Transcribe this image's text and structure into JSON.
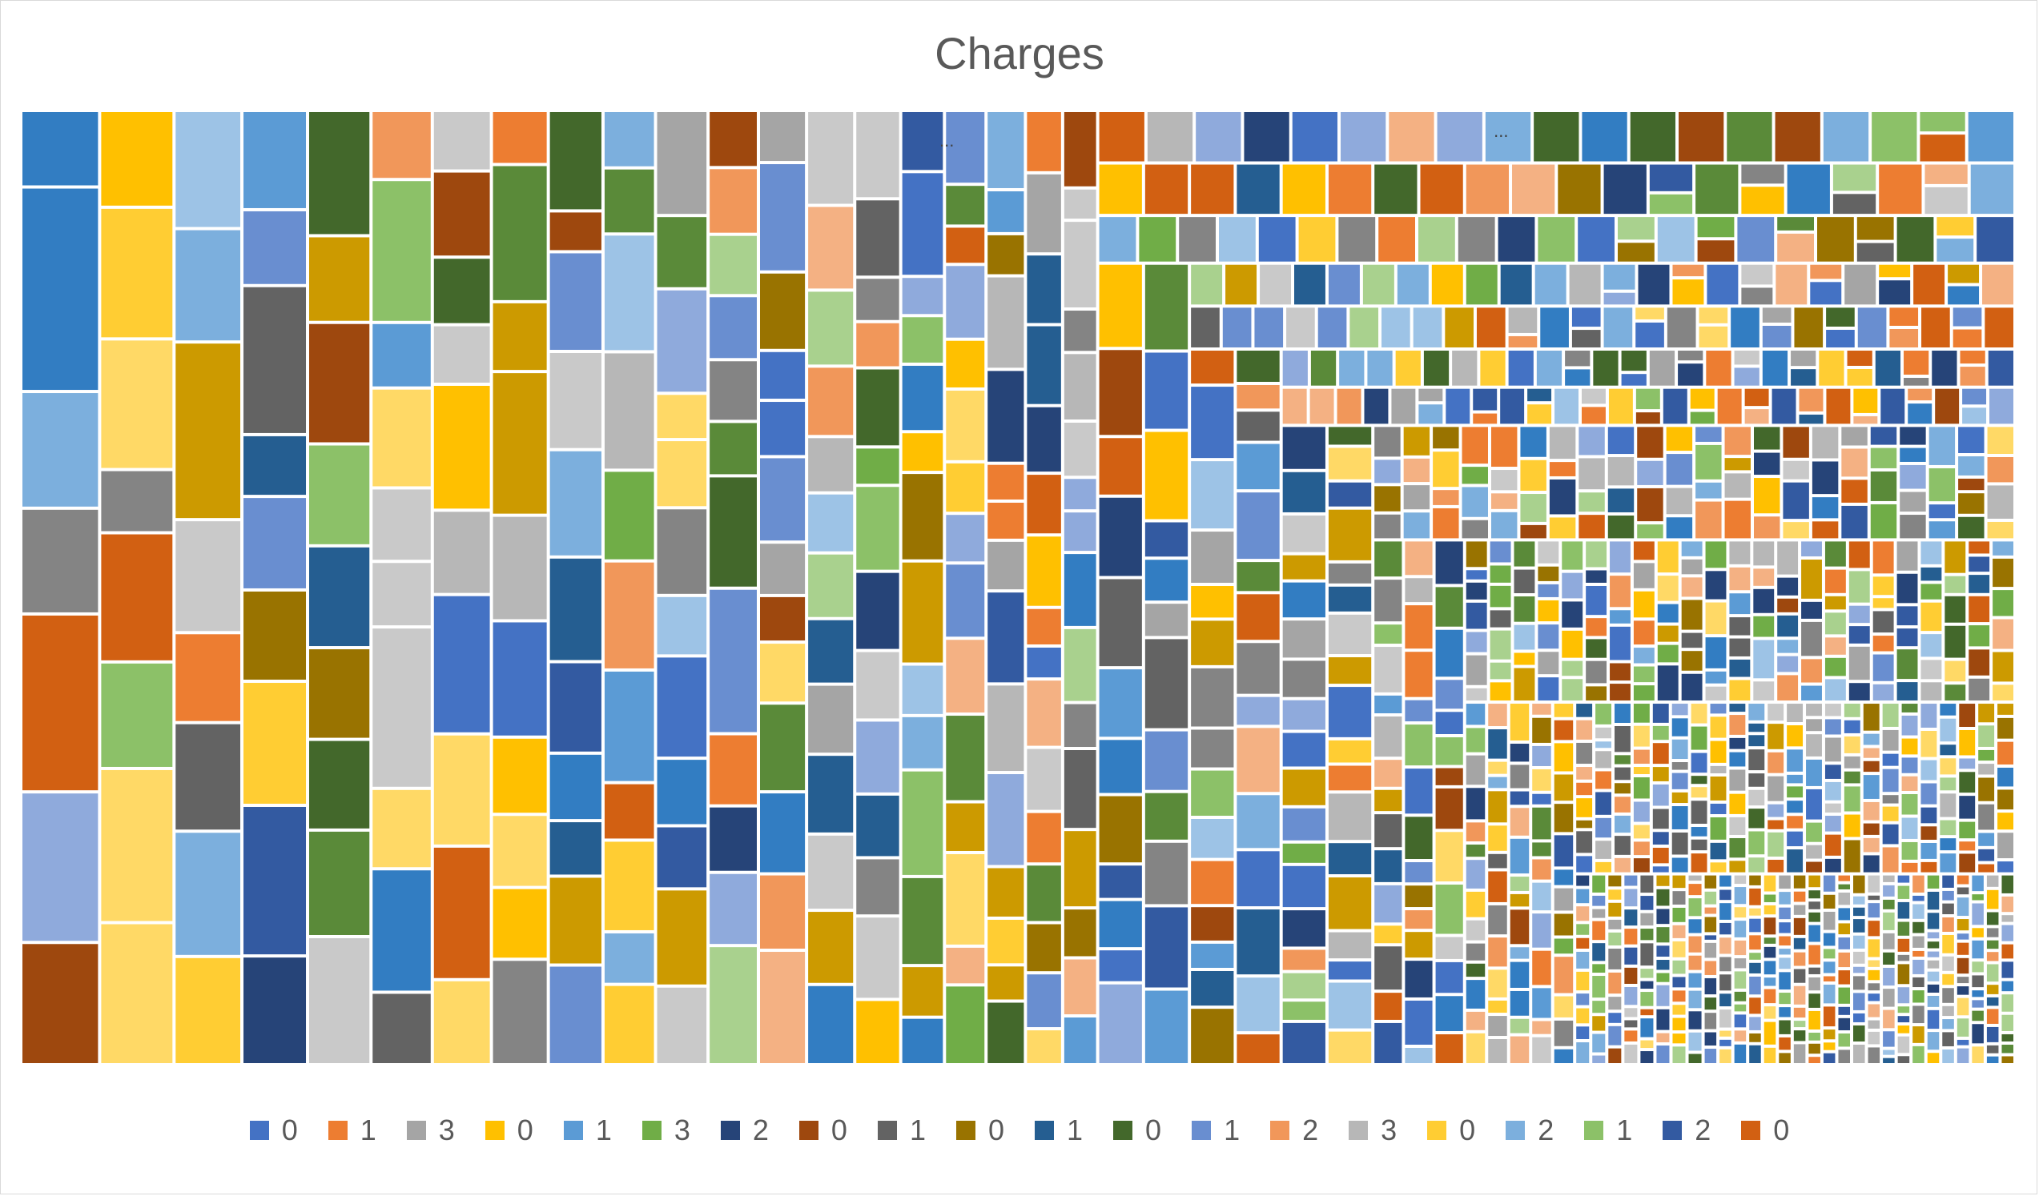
{
  "chart_data": {
    "type": "treemap",
    "title": "Charges",
    "palette": [
      "#4472C4",
      "#ED7D31",
      "#A5A5A5",
      "#FFC000",
      "#5B9BD5",
      "#70AD47",
      "#264478",
      "#9E480E",
      "#636363",
      "#997300",
      "#255E91",
      "#43682B",
      "#698ED0",
      "#F1975A",
      "#B7B7B7",
      "#FFCD33",
      "#7CAFDD",
      "#8CC168",
      "#335AA1",
      "#D26012",
      "#848484",
      "#CC9A00",
      "#327DC2",
      "#5A8A39",
      "#8FAADC",
      "#F4B183",
      "#C9C9C9",
      "#FFD966",
      "#9DC3E6",
      "#A9D18E"
    ],
    "legend": [
      {
        "label": "0",
        "color": "#4472C4"
      },
      {
        "label": "1",
        "color": "#ED7D31"
      },
      {
        "label": "3",
        "color": "#A5A5A5"
      },
      {
        "label": "0",
        "color": "#FFC000"
      },
      {
        "label": "1",
        "color": "#5B9BD5"
      },
      {
        "label": "3",
        "color": "#70AD47"
      },
      {
        "label": "2",
        "color": "#264478"
      },
      {
        "label": "0",
        "color": "#9E480E"
      },
      {
        "label": "1",
        "color": "#636363"
      },
      {
        "label": "0",
        "color": "#997300"
      },
      {
        "label": "1",
        "color": "#255E91"
      },
      {
        "label": "0",
        "color": "#43682B"
      },
      {
        "label": "1",
        "color": "#698ED0"
      },
      {
        "label": "2",
        "color": "#F1975A"
      },
      {
        "label": "3",
        "color": "#B7B7B7"
      },
      {
        "label": "0",
        "color": "#FFCD33"
      },
      {
        "label": "2",
        "color": "#7CAFDD"
      },
      {
        "label": "1",
        "color": "#8CC168"
      },
      {
        "label": "2",
        "color": "#335AA1"
      },
      {
        "label": "0",
        "color": "#D26012"
      }
    ],
    "groups": [
      {
        "value": 36,
        "leaves": 7
      },
      {
        "value": 34,
        "leaves": 8
      },
      {
        "value": 31,
        "leaves": 8
      },
      {
        "value": 30,
        "leaves": 9
      },
      {
        "value": 29,
        "leaves": 9
      },
      {
        "value": 28,
        "leaves": 10
      },
      {
        "value": 27,
        "leaves": 10
      },
      {
        "value": 26,
        "leaves": 10
      },
      {
        "value": 25,
        "leaves": 11
      },
      {
        "value": 24,
        "leaves": 11
      },
      {
        "value": 24,
        "leaves": 12
      },
      {
        "value": 23,
        "leaves": 12
      },
      {
        "value": 22,
        "leaves": 13
      },
      {
        "value": 22,
        "leaves": 13
      },
      {
        "value": 21,
        "leaves": 14
      },
      {
        "value": 20,
        "leaves": 14
      },
      {
        "value": 19,
        "leaves": 15
      },
      {
        "value": 18,
        "leaves": 15
      },
      {
        "value": 17,
        "leaves": 16
      },
      {
        "value": 16,
        "leaves": 16
      }
    ],
    "detail_cells": 1300,
    "overflow_label": "..."
  }
}
